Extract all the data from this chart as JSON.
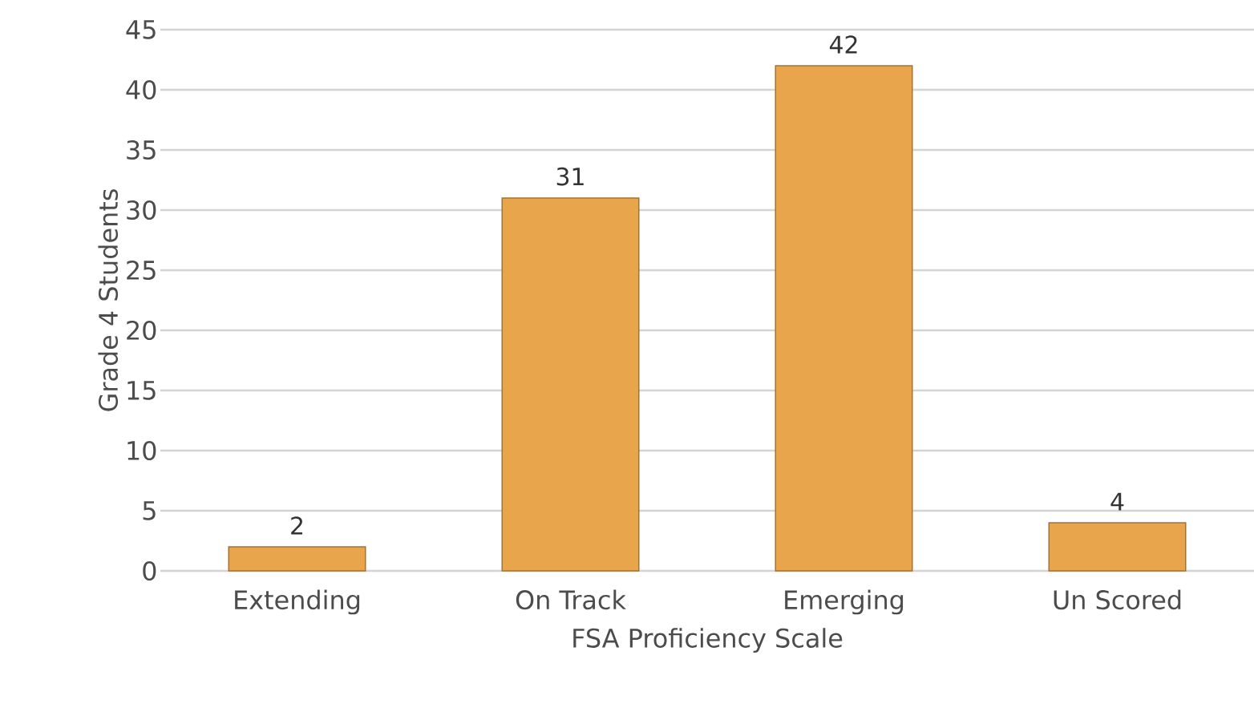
{
  "chart_data": {
    "type": "bar",
    "xlabel": "FSA Proficiency Scale",
    "ylabel": "Grade 4 Students",
    "categories": [
      "Extending",
      "On Track",
      "Emerging",
      "Un Scored"
    ],
    "values": [
      2,
      31,
      42,
      4
    ],
    "color": "#e8a54b",
    "ylim": [
      0,
      45
    ],
    "yticks": [
      0,
      5,
      10,
      15,
      20,
      25,
      30,
      35,
      40,
      45
    ],
    "grid": "y",
    "data_labels": true
  }
}
